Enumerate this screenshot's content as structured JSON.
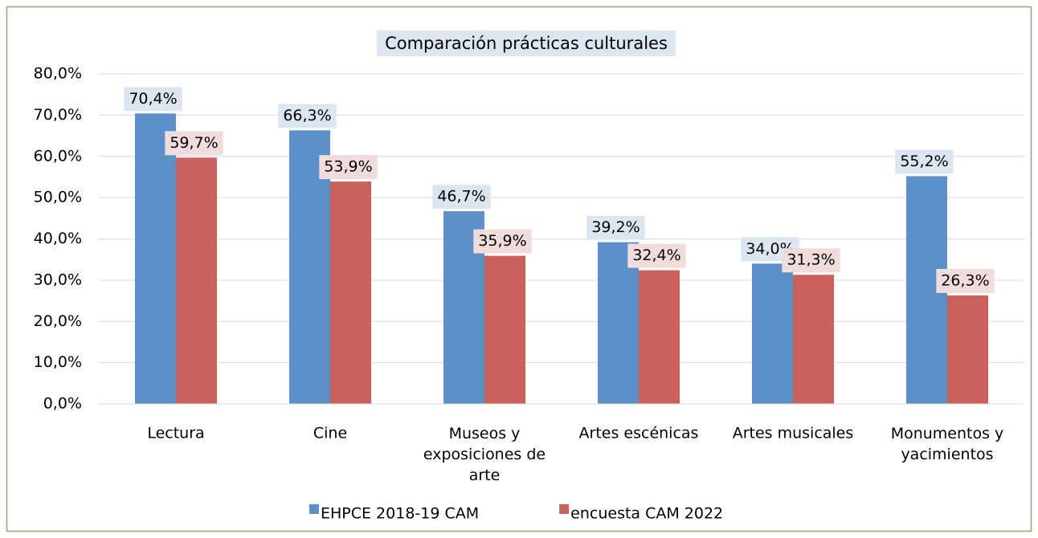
{
  "chart_data": {
    "type": "bar",
    "title": "Comparación prácticas culturales",
    "categories": [
      "Lectura",
      "Cine",
      "Museos y exposiciones de arte",
      "Artes escénicas",
      "Artes musicales",
      "Monumentos y yacimientos"
    ],
    "series": [
      {
        "name": "EHPCE 2018-19 CAM",
        "color": "#5b8fc7",
        "label_bg": "#dce6f0",
        "values": [
          70.4,
          66.3,
          46.7,
          39.2,
          34.0,
          55.2
        ],
        "value_labels": [
          "70,4%",
          "66,3%",
          "46,7%",
          "39,2%",
          "34,0%",
          "55,2%"
        ]
      },
      {
        "name": "encuesta CAM 2022",
        "color": "#c9625c",
        "label_bg": "#f2dcdb",
        "values": [
          59.7,
          53.9,
          35.9,
          32.4,
          31.3,
          26.3
        ],
        "value_labels": [
          "59,7%",
          "53,9%",
          "35,9%",
          "32,4%",
          "31,3%",
          "26,3%"
        ]
      }
    ],
    "ylim": [
      0,
      80
    ],
    "yticks": [
      {
        "value": 0,
        "label": "0,0%"
      },
      {
        "value": 10,
        "label": "10,0%"
      },
      {
        "value": 20,
        "label": "20,0%"
      },
      {
        "value": 30,
        "label": "30,0%"
      },
      {
        "value": 40,
        "label": "40,0%"
      },
      {
        "value": 50,
        "label": "50,0%"
      },
      {
        "value": 60,
        "label": "60,0%"
      },
      {
        "value": 70,
        "label": "70,0%"
      },
      {
        "value": 80,
        "label": "80,0%"
      }
    ],
    "grid": true,
    "legend": "bottom"
  }
}
